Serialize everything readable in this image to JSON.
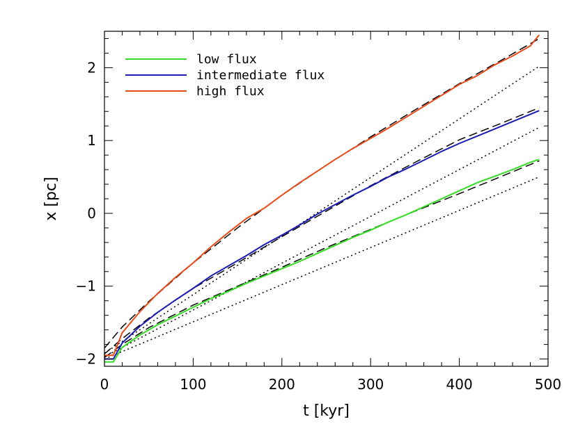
{
  "chart_data": {
    "type": "line",
    "title": "",
    "xlabel": "t [kyr]",
    "ylabel": "x [pc]",
    "xlim": [
      0,
      500
    ],
    "ylim": [
      -2.1,
      2.5
    ],
    "xticks": [
      0,
      100,
      200,
      300,
      400,
      500
    ],
    "xtick_labels": [
      "0",
      "100",
      "200",
      "300",
      "400",
      "500"
    ],
    "yticks": [
      -2,
      -1,
      0,
      1,
      2
    ],
    "ytick_labels": [
      "−2",
      "−1",
      "0",
      "1",
      "2"
    ],
    "grid": false,
    "legend_position": "top-left",
    "series": [
      {
        "name": "low flux",
        "color": "#33dd22",
        "style": "solid",
        "x": [
          0,
          10,
          20,
          40,
          60,
          80,
          100,
          120,
          140,
          160,
          180,
          200,
          220,
          240,
          260,
          280,
          300,
          320,
          340,
          360,
          380,
          400,
          420,
          440,
          460,
          480,
          490
        ],
        "y": [
          -2.04,
          -2.04,
          -1.84,
          -1.67,
          -1.53,
          -1.41,
          -1.29,
          -1.17,
          -1.07,
          -0.96,
          -0.86,
          -0.76,
          -0.66,
          -0.55,
          -0.44,
          -0.33,
          -0.23,
          -0.12,
          -0.02,
          0.09,
          0.2,
          0.31,
          0.42,
          0.51,
          0.6,
          0.7,
          0.74
        ]
      },
      {
        "name": "intermediate flux",
        "color": "#1a1ab4",
        "style": "solid",
        "x": [
          0,
          10,
          20,
          40,
          60,
          80,
          100,
          120,
          140,
          160,
          180,
          200,
          220,
          240,
          260,
          280,
          300,
          320,
          340,
          360,
          380,
          400,
          420,
          440,
          460,
          480,
          490
        ],
        "y": [
          -2.0,
          -2.0,
          -1.78,
          -1.55,
          -1.36,
          -1.19,
          -1.03,
          -0.86,
          -0.72,
          -0.58,
          -0.43,
          -0.3,
          -0.16,
          -0.01,
          0.12,
          0.25,
          0.37,
          0.5,
          0.61,
          0.73,
          0.85,
          0.96,
          1.06,
          1.16,
          1.26,
          1.36,
          1.41
        ]
      },
      {
        "name": "high flux",
        "color": "#e84a1a",
        "style": "solid",
        "x": [
          0,
          10,
          20,
          40,
          60,
          80,
          100,
          120,
          140,
          160,
          180,
          200,
          220,
          240,
          260,
          280,
          300,
          320,
          340,
          360,
          380,
          400,
          420,
          440,
          460,
          480,
          490
        ],
        "y": [
          -1.95,
          -1.95,
          -1.64,
          -1.35,
          -1.1,
          -0.88,
          -0.68,
          -0.46,
          -0.26,
          -0.07,
          0.07,
          0.25,
          0.42,
          0.58,
          0.74,
          0.89,
          1.03,
          1.17,
          1.32,
          1.47,
          1.62,
          1.77,
          1.89,
          2.04,
          2.16,
          2.3,
          2.45
        ]
      },
      {
        "color": "#000000",
        "style": "dashed",
        "x": [
          0,
          20,
          50,
          100,
          150,
          200,
          250,
          300,
          350,
          400,
          450,
          490
        ],
        "y": [
          -1.98,
          -1.8,
          -1.57,
          -1.26,
          -1.0,
          -0.74,
          -0.47,
          -0.22,
          0.03,
          0.27,
          0.52,
          0.72
        ]
      },
      {
        "color": "#000000",
        "style": "dashed",
        "x": [
          0,
          20,
          50,
          100,
          150,
          200,
          250,
          300,
          350,
          400,
          450,
          490
        ],
        "y": [
          -1.93,
          -1.72,
          -1.44,
          -1.03,
          -0.68,
          -0.32,
          0.03,
          0.38,
          0.7,
          1.01,
          1.25,
          1.45
        ]
      },
      {
        "color": "#000000",
        "style": "dashed",
        "x": [
          0,
          20,
          50,
          100,
          150,
          200,
          250,
          300,
          350,
          400,
          450,
          490
        ],
        "y": [
          -1.85,
          -1.56,
          -1.21,
          -0.68,
          -0.2,
          0.25,
          0.66,
          1.05,
          1.42,
          1.78,
          2.12,
          2.4
        ]
      },
      {
        "color": "#000000",
        "style": "dotted",
        "x": [
          0,
          490
        ],
        "y": [
          -2.0,
          0.5
        ]
      },
      {
        "color": "#000000",
        "style": "dotted",
        "x": [
          0,
          490
        ],
        "y": [
          -1.97,
          1.18
        ]
      },
      {
        "color": "#000000",
        "style": "dotted",
        "x": [
          0,
          490
        ],
        "y": [
          -1.92,
          2.02
        ]
      }
    ]
  }
}
